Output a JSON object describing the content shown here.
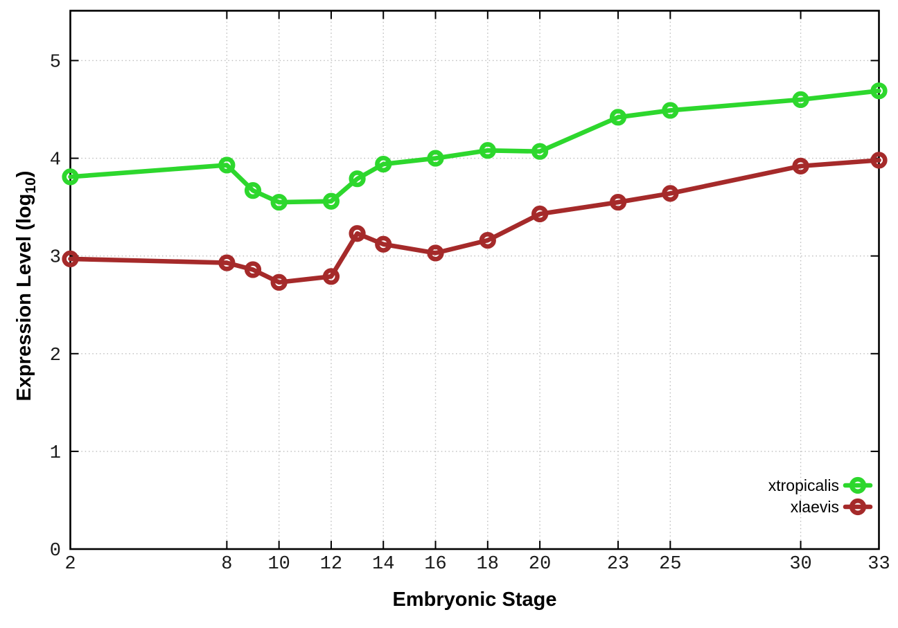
{
  "figure": {
    "background": "#ffffff",
    "chart_data": {
      "type": "line",
      "title": "",
      "xlabel": "Embryonic Stage",
      "ylabel": "Expression Level (log10)",
      "ylabel_parts": {
        "main": "Expression Level (log",
        "sub": "10",
        "end": ")"
      },
      "x": [
        2,
        8,
        9,
        10,
        12,
        13,
        14,
        16,
        18,
        20,
        23,
        25,
        30,
        33
      ],
      "series": [
        {
          "name": "xtropicalis",
          "color": "#2dd72d",
          "values": [
            3.81,
            3.93,
            3.67,
            3.55,
            3.56,
            3.79,
            3.94,
            4.0,
            4.08,
            4.07,
            4.42,
            4.49,
            4.6,
            4.69
          ]
        },
        {
          "name": "xlaevis",
          "color": "#a52a2a",
          "values": [
            2.97,
            2.93,
            2.86,
            2.73,
            2.79,
            3.23,
            3.12,
            3.03,
            3.16,
            3.43,
            3.55,
            3.64,
            3.92,
            3.98
          ]
        }
      ],
      "xticks": [
        2,
        8,
        10,
        12,
        14,
        16,
        18,
        20,
        23,
        25,
        30,
        33
      ],
      "yticks": [
        0,
        1,
        2,
        3,
        4,
        5
      ],
      "xlim": [
        2,
        33
      ],
      "ylim": [
        0,
        5.51
      ],
      "grid": true,
      "legend_position": "inside-bottom-right",
      "marker": "open-circle",
      "colors": {
        "grid": "#bcbcbc",
        "axis": "#000000",
        "tick_label": "#1a1a1a",
        "background": "#ffffff"
      }
    }
  }
}
